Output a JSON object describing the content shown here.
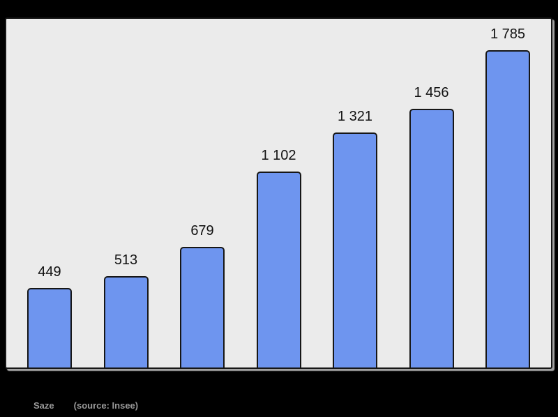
{
  "chart_data": {
    "type": "bar",
    "values": [
      449,
      513,
      679,
      1102,
      1321,
      1456,
      1785
    ],
    "value_labels": [
      "449",
      "513",
      "679",
      "1 102",
      "1 321",
      "1 456",
      "1 785"
    ],
    "ylim": [
      0,
      1960
    ],
    "grid": false,
    "axes_visible": false,
    "legend": "none",
    "bar_color": "#6e95ef",
    "bar_border_color": "#161616",
    "panel_background": "#ebebeb",
    "outer_background": "#000000",
    "label_color": "#111111"
  },
  "caption": {
    "title": "Saze",
    "source": "(source: Insee)",
    "color": "#999999"
  }
}
